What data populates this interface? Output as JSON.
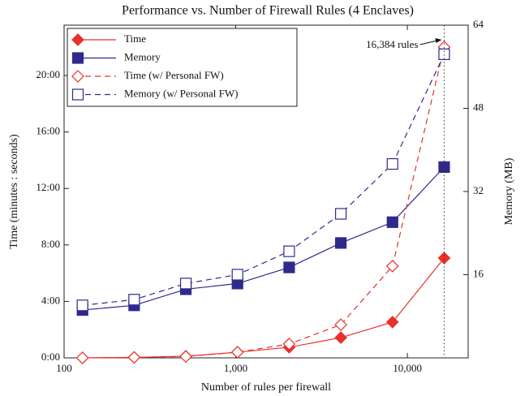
{
  "chart_data": {
    "type": "line",
    "title": "Performance vs. Number of Firewall Rules (4 Enclaves)",
    "x_label": "Number of rules per firewall",
    "y_label": "Time (minutes : seconds)",
    "y2_label": "Memory (MB)",
    "x": [
      128,
      256,
      512,
      1024,
      2048,
      4096,
      8192,
      16384
    ],
    "log_x": true,
    "xlim": [
      100,
      22600
    ],
    "xticks": [
      100,
      {
        "value": 1000,
        "label": "1,000"
      },
      {
        "value": 10000,
        "label": "10,000"
      }
    ],
    "ylim": [
      0,
      1414
    ],
    "yticks": [
      {
        "value": 0,
        "label": "0:00"
      },
      {
        "value": 240,
        "label": "4:00"
      },
      {
        "value": 480,
        "label": "8:00"
      },
      {
        "value": 720,
        "label": "12:00"
      },
      {
        "value": 960,
        "label": "16:00"
      },
      {
        "value": 1200,
        "label": "20:00"
      }
    ],
    "y2lim": [
      0,
      64
    ],
    "y2ticks": [
      16,
      32,
      48,
      64
    ],
    "legend": "upper left",
    "series": [
      {
        "name": "Time",
        "color": "#e8312a",
        "marker": "diamond",
        "filled": true,
        "dashed": false,
        "values": [
          0,
          2,
          7,
          24,
          45,
          86,
          152,
          424
        ]
      },
      {
        "name": "Memory",
        "color": "#2e2a8c",
        "marker": "square",
        "filled": true,
        "dashed": false,
        "axis": "y2",
        "values": [
          9.2,
          10.1,
          13.2,
          14.3,
          17.4,
          22.1,
          26.1,
          36.7
        ]
      },
      {
        "name": "Time (w/ Personal FW)",
        "color": "#e8312a",
        "marker": "diamond",
        "filled": false,
        "dashed": true,
        "values": [
          0,
          2,
          6,
          24,
          59,
          141,
          390,
          1321
        ]
      },
      {
        "name": "Memory (w/ Personal FW)",
        "color": "#2e2a8c",
        "marker": "square",
        "filled": false,
        "dashed": true,
        "axis": "y2",
        "values": [
          10.1,
          11.2,
          14.3,
          16.0,
          20.5,
          27.7,
          37.3,
          58.4
        ]
      }
    ],
    "annotation": {
      "text": "16,384 rules",
      "x": 16384
    }
  }
}
